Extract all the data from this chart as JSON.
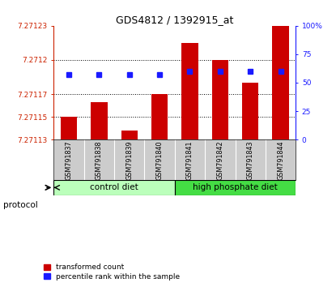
{
  "title": "GDS4812 / 1392915_at",
  "samples": [
    "GSM791837",
    "GSM791838",
    "GSM791839",
    "GSM791840",
    "GSM791841",
    "GSM791842",
    "GSM791843",
    "GSM791844"
  ],
  "transformed_count": [
    7.27115,
    7.271163,
    7.271138,
    7.27117,
    7.271215,
    7.2712,
    7.27118,
    7.27123
  ],
  "percentile_rank": [
    57,
    57,
    57,
    57,
    60,
    60,
    60,
    60
  ],
  "ymin": 7.27113,
  "ymax": 7.27123,
  "yticks": [
    7.27113,
    7.27115,
    7.27117,
    7.2712,
    7.27123
  ],
  "ytick_labels": [
    "7.27113",
    "7.27115",
    "7.27117",
    "7.2712",
    "7.27123"
  ],
  "y2min": 0,
  "y2max": 100,
  "y2ticks": [
    0,
    25,
    50,
    75,
    100
  ],
  "y2tick_labels": [
    "0",
    "25",
    "50",
    "75",
    "100%"
  ],
  "bar_color": "#cc0000",
  "dot_color": "#1a1aff",
  "left_axis_color": "#cc2200",
  "right_axis_color": "#1a1aff",
  "groups": [
    {
      "label": "control diet",
      "start": 0,
      "end": 3,
      "color": "#bbffbb"
    },
    {
      "label": "high phosphate diet",
      "start": 4,
      "end": 7,
      "color": "#44dd44"
    }
  ],
  "protocol_label": "protocol",
  "legend_items": [
    {
      "color": "#cc0000",
      "label": "transformed count"
    },
    {
      "color": "#1a1aff",
      "label": "percentile rank within the sample"
    }
  ],
  "grid_dotted_at": [
    7.27115,
    7.27117,
    7.2712
  ],
  "background_color": "#ffffff",
  "label_area_bg": "#cccccc",
  "figsize": [
    4.15,
    3.54
  ],
  "dpi": 100
}
